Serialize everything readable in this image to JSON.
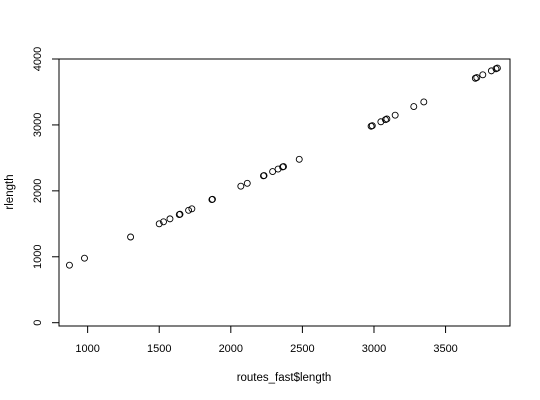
{
  "chart_data": {
    "type": "scatter",
    "xlabel": "routes_fast$length",
    "ylabel": "rlength",
    "xlim": [
      800,
      3950
    ],
    "ylim": [
      -50,
      4000
    ],
    "x_ticks": [
      1000,
      1500,
      2000,
      2500,
      3000,
      3500
    ],
    "y_ticks": [
      0,
      1000,
      2000,
      3000,
      4000
    ],
    "grid": false,
    "legend": "none",
    "marker": "open-circle",
    "points": [
      [
        873,
        873
      ],
      [
        978,
        978
      ],
      [
        1300,
        1300
      ],
      [
        1500,
        1500
      ],
      [
        1530,
        1530
      ],
      [
        1575,
        1575
      ],
      [
        1640,
        1640
      ],
      [
        1645,
        1645
      ],
      [
        1705,
        1705
      ],
      [
        1728,
        1728
      ],
      [
        1868,
        1868
      ],
      [
        1872,
        1872
      ],
      [
        2070,
        2070
      ],
      [
        2115,
        2115
      ],
      [
        2228,
        2228
      ],
      [
        2232,
        2232
      ],
      [
        2292,
        2292
      ],
      [
        2330,
        2330
      ],
      [
        2362,
        2362
      ],
      [
        2368,
        2368
      ],
      [
        2478,
        2478
      ],
      [
        2980,
        2980
      ],
      [
        2988,
        2988
      ],
      [
        3048,
        3048
      ],
      [
        3080,
        3080
      ],
      [
        3090,
        3090
      ],
      [
        3148,
        3148
      ],
      [
        3278,
        3278
      ],
      [
        3348,
        3348
      ],
      [
        3708,
        3708
      ],
      [
        3718,
        3718
      ],
      [
        3760,
        3760
      ],
      [
        3820,
        3820
      ],
      [
        3852,
        3852
      ],
      [
        3862,
        3862
      ]
    ]
  }
}
